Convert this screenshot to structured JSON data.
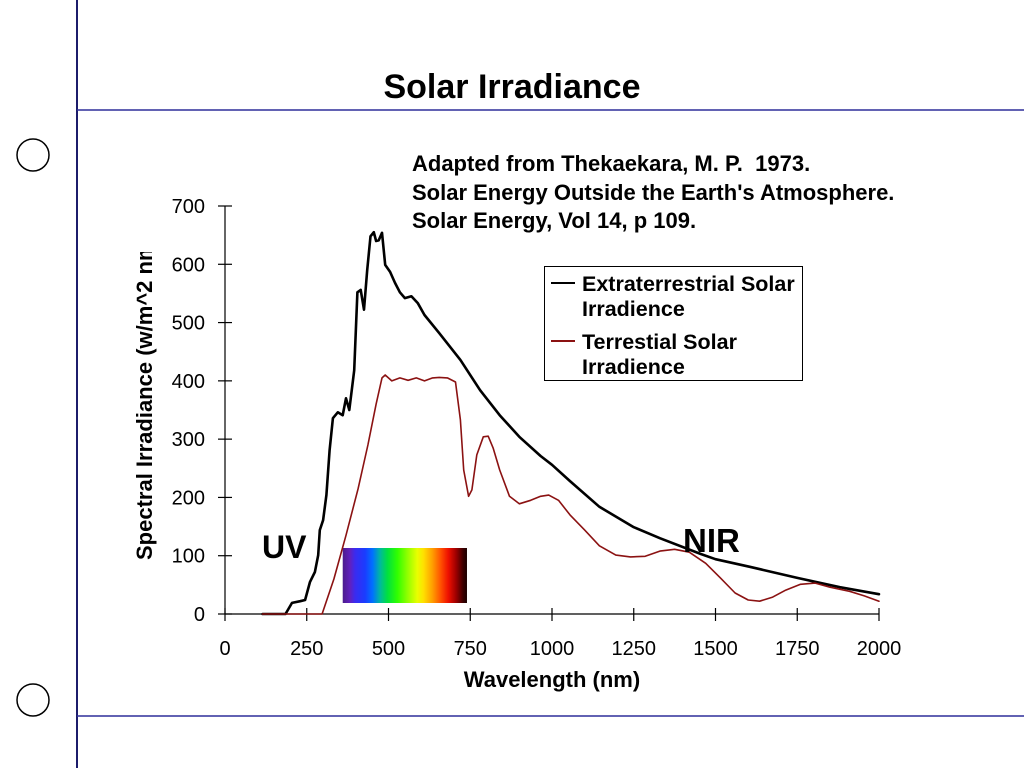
{
  "slide": {
    "citation": [
      "Adapted from Thekaekara, M. P.  1973.",
      "Solar Energy Outside the Earth's Atmosphere.",
      "Solar Energy, Vol 14, p 109."
    ]
  },
  "colors": {
    "frame_vertical": "#1c1c6b",
    "frame_horizontal": "#2e2e9a"
  },
  "chart_data": {
    "type": "line",
    "title": "Solar Irradiance",
    "xlabel": "Wavelength (nm)",
    "ylabel": "Spectral Irradiance (w/m^2 nm",
    "xlim": [
      0,
      2000
    ],
    "ylim": [
      0,
      700
    ],
    "xticks": [
      0,
      250,
      500,
      750,
      1000,
      1250,
      1500,
      1750,
      2000
    ],
    "yticks": [
      0,
      100,
      200,
      300,
      400,
      500,
      600,
      700
    ],
    "grid": false,
    "legend": "top-right",
    "annotations": [
      "UV",
      "NIR"
    ],
    "visible_spectrum_nm": [
      360,
      740
    ],
    "series": [
      {
        "name": "Extraterrestrial Solar Irradience",
        "color": "#000000",
        "points": [
          [
            115,
            0
          ],
          [
            185,
            0
          ],
          [
            205,
            19
          ],
          [
            230,
            22
          ],
          [
            245,
            24
          ],
          [
            260,
            55
          ],
          [
            275,
            72
          ],
          [
            285,
            101
          ],
          [
            290,
            144
          ],
          [
            300,
            161
          ],
          [
            310,
            204
          ],
          [
            320,
            281
          ],
          [
            330,
            336
          ],
          [
            345,
            346
          ],
          [
            360,
            341
          ],
          [
            370,
            370
          ],
          [
            380,
            350
          ],
          [
            395,
            418
          ],
          [
            405,
            552
          ],
          [
            415,
            556
          ],
          [
            425,
            522
          ],
          [
            435,
            590
          ],
          [
            445,
            648
          ],
          [
            455,
            655
          ],
          [
            462,
            640
          ],
          [
            470,
            641
          ],
          [
            480,
            654
          ],
          [
            490,
            599
          ],
          [
            505,
            587
          ],
          [
            520,
            568
          ],
          [
            535,
            552
          ],
          [
            550,
            542
          ],
          [
            570,
            545
          ],
          [
            590,
            533
          ],
          [
            610,
            513
          ],
          [
            655,
            482
          ],
          [
            720,
            436
          ],
          [
            780,
            384
          ],
          [
            840,
            341
          ],
          [
            900,
            304
          ],
          [
            965,
            271
          ],
          [
            1000,
            256
          ],
          [
            1055,
            228
          ],
          [
            1145,
            184
          ],
          [
            1250,
            149
          ],
          [
            1330,
            130
          ],
          [
            1455,
            103
          ],
          [
            1500,
            94
          ],
          [
            1605,
            81
          ],
          [
            1750,
            62
          ],
          [
            1880,
            46
          ],
          [
            2000,
            34
          ]
        ]
      },
      {
        "name": "Terrestial Solar Irradience",
        "color": "#8b1212",
        "points": [
          [
            115,
            0
          ],
          [
            297,
            0
          ],
          [
            333,
            60
          ],
          [
            370,
            135
          ],
          [
            407,
            215
          ],
          [
            437,
            290
          ],
          [
            462,
            360
          ],
          [
            480,
            405
          ],
          [
            490,
            410
          ],
          [
            510,
            400
          ],
          [
            535,
            405
          ],
          [
            560,
            401
          ],
          [
            585,
            405
          ],
          [
            610,
            400
          ],
          [
            635,
            405
          ],
          [
            655,
            406
          ],
          [
            680,
            405
          ],
          [
            705,
            398
          ],
          [
            720,
            333
          ],
          [
            730,
            247
          ],
          [
            745,
            202
          ],
          [
            755,
            213
          ],
          [
            770,
            273
          ],
          [
            790,
            304
          ],
          [
            805,
            305
          ],
          [
            820,
            285
          ],
          [
            840,
            247
          ],
          [
            870,
            202
          ],
          [
            900,
            189
          ],
          [
            935,
            195
          ],
          [
            965,
            202
          ],
          [
            990,
            204
          ],
          [
            1020,
            195
          ],
          [
            1055,
            170
          ],
          [
            1100,
            144
          ],
          [
            1145,
            117
          ],
          [
            1195,
            101
          ],
          [
            1240,
            98
          ],
          [
            1285,
            99
          ],
          [
            1330,
            108
          ],
          [
            1375,
            111
          ],
          [
            1420,
            106
          ],
          [
            1470,
            87
          ],
          [
            1515,
            62
          ],
          [
            1560,
            36
          ],
          [
            1600,
            24
          ],
          [
            1635,
            22
          ],
          [
            1675,
            29
          ],
          [
            1715,
            41
          ],
          [
            1760,
            51
          ],
          [
            1805,
            53
          ],
          [
            1850,
            46
          ],
          [
            1910,
            39
          ],
          [
            1955,
            31
          ],
          [
            2000,
            22
          ]
        ]
      }
    ]
  }
}
